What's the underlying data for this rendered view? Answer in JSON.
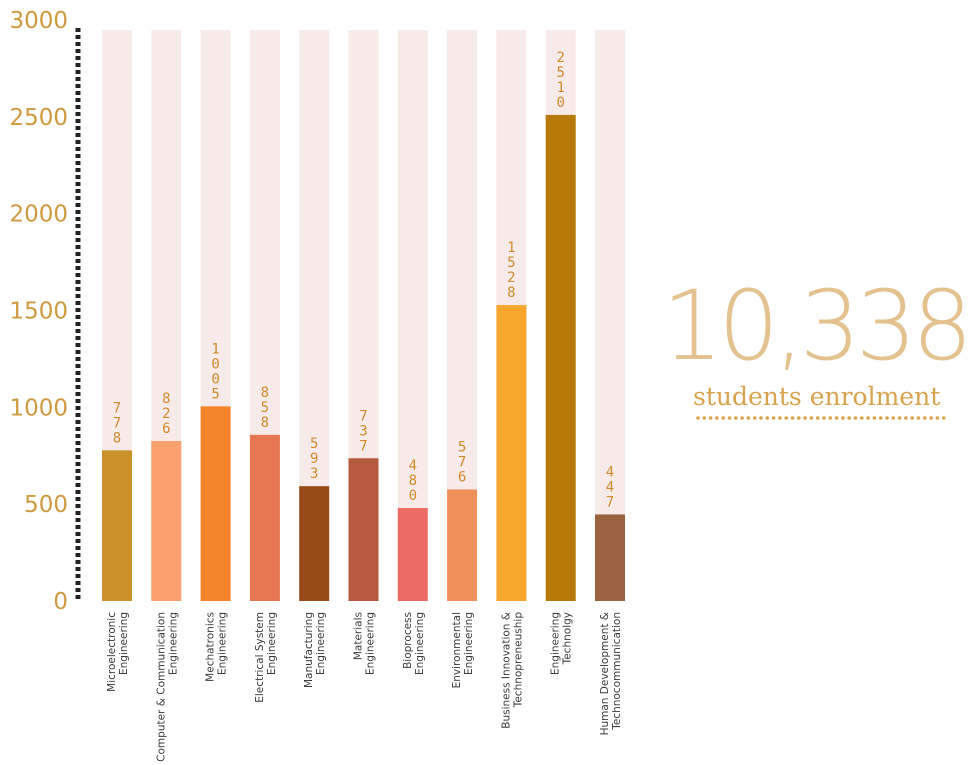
{
  "chart_data": {
    "type": "bar",
    "categories": [
      "Microelectronic Engineering",
      "Computer & Communication Engineering",
      "Mechatronics Engineering",
      "Electrical System Engineering",
      "Manufacturing Engineering",
      "Materials Engineering",
      "Bioprocess Engineering",
      "Environmental Engineering",
      "Business Innovation & Technopreneuship",
      "Engineering Technolgy",
      "Human Development & Technocommunication"
    ],
    "category_lines": [
      [
        "Microelectronic",
        "Engineering"
      ],
      [
        "Computer & Communication",
        "Engineering"
      ],
      [
        "Mechatronics",
        "Engineering"
      ],
      [
        "Electrical System",
        "Engineering"
      ],
      [
        "Manufacturing",
        "Engineering"
      ],
      [
        "Materials",
        "Engineering"
      ],
      [
        "Bioprocess",
        "Engineering"
      ],
      [
        "Environmental",
        "Engineering"
      ],
      [
        "Business Innovation &",
        "Technopreneuship"
      ],
      [
        "Engineering",
        "Technolgy"
      ],
      [
        "Human Development &",
        "Technocommunication"
      ]
    ],
    "values": [
      778,
      826,
      1005,
      858,
      593,
      737,
      480,
      576,
      1528,
      2510,
      447
    ],
    "data_labels": [
      "778",
      "826",
      "1005",
      "858",
      "593",
      "737",
      "480",
      "576",
      "1528",
      "2510",
      "447"
    ],
    "ylim": [
      0,
      3000
    ],
    "yticks": [
      "0",
      "500",
      "1000",
      "1500",
      "2000",
      "2500",
      "3000"
    ],
    "grid": false,
    "colors": [
      "#cb912a",
      "#f8a06e",
      "#f5832a",
      "#e77753",
      "#974c17",
      "#b55a3c",
      "#ec6c65",
      "#ef9059",
      "#f7a62e",
      "#b6790a",
      "#9b6242"
    ],
    "track_color": "#f6ebe9",
    "axis_color": "#222222"
  },
  "summary": {
    "total": "10,338",
    "caption": "students enrolment",
    "color": "#e4c28f",
    "caption_color": "#d9a24c"
  }
}
